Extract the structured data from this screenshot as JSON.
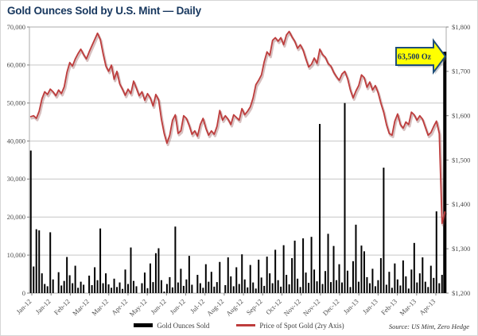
{
  "page": {
    "title": "Gold Ounces Sold by U.S. Mint — Daily",
    "source_note": "Source: US Mint, Zero Hedge"
  },
  "legend": {
    "bars_label": "Gold Ounces Sold",
    "line_label": "Price of Spot Gold (2ry Axis)"
  },
  "colors": {
    "title_text": "#17375E",
    "bars": "#000000",
    "line": "#BE3D3D",
    "line_shadow": "rgba(130,60,60,0.32)",
    "grid": "#C6C6C6",
    "plot_border": "#ABABAB",
    "axis_text": "#4d4d4d",
    "annotation_fill": "#FFFF00",
    "annotation_border": "#1F4E79",
    "annotation_text": "#17375E"
  },
  "chart_data": {
    "type": "combo: bar + line (secondary axis)",
    "title": "Gold Ounces Sold by U.S. Mint — Daily",
    "grid": true,
    "legend_position": "bottom",
    "annotation": {
      "text": "63,500 Oz",
      "points_to_value": 63500,
      "series": "Gold Ounces Sold"
    },
    "x_tick_labels": [
      "Jan-12",
      "Jan-12",
      "Feb-12",
      "Mar-12",
      "Mar-12",
      "Apr-12",
      "May-12",
      "Jun-12",
      "Jun-12",
      "Jul-12",
      "Aug-12",
      "Aug-12",
      "Sep-12",
      "Oct-12",
      "Nov-12",
      "Nov-12",
      "Dec-12",
      "Jan-13",
      "Jan-13",
      "Feb-13",
      "Mar-13",
      "Apr-13"
    ],
    "left_axis": {
      "label_for": "Gold Ounces Sold",
      "min": 0,
      "max": 70000,
      "step": 10000,
      "tick_labels": [
        "0",
        "10,000",
        "20,000",
        "30,000",
        "40,000",
        "50,000",
        "60,000",
        "70,000"
      ]
    },
    "right_axis": {
      "label_for": "Price of Spot Gold",
      "min": 1200,
      "max": 1800,
      "step": 100,
      "tick_labels": [
        "$1,200",
        "$1,300",
        "$1,400",
        "$1,500",
        "$1,600",
        "$1,700",
        "$1,800"
      ]
    },
    "series": [
      {
        "name": "Gold Ounces Sold",
        "type": "bar",
        "axis": "left",
        "values": [
          37500,
          7000,
          16800,
          16500,
          5200,
          2400,
          1800,
          16000,
          3600,
          0,
          5500,
          2000,
          3200,
          9500,
          4700,
          2600,
          7200,
          1400,
          3000,
          2200,
          0,
          4600,
          2100,
          6800,
          3400,
          17000,
          2600,
          5200,
          2300,
          1400,
          3800,
          1600,
          2800,
          1100,
          6200,
          2400,
          12000,
          3200,
          1800,
          0,
          2600,
          5400,
          1300,
          7800,
          2900,
          10500,
          11800,
          3400,
          400,
          2400,
          4200,
          1500,
          17500,
          2800,
          6400,
          1900,
          3600,
          9800,
          2200,
          0,
          4800,
          2600,
          1400,
          7600,
          3000,
          5600,
          1700,
          2900,
          8200,
          0,
          2100,
          9400,
          4400,
          1800,
          6800,
          2400,
          10200,
          3600,
          1500,
          7400,
          2800,
          1200,
          8800,
          4100,
          1900,
          9600,
          5200,
          2600,
          11400,
          3400,
          1700,
          12600,
          4800,
          2300,
          9200,
          13800,
          3800,
          1600,
          14400,
          5400,
          2700,
          14800,
          6200,
          3100,
          44500,
          2400,
          5800,
          15600,
          2900,
          12400,
          3400,
          7600,
          2800,
          50000,
          5900,
          1600,
          8400,
          18000,
          3000,
          12500,
          11000,
          4200,
          2600,
          6400,
          1800,
          3400,
          9200,
          33000,
          2200,
          5600,
          1400,
          7800,
          3600,
          2000,
          8600,
          4400,
          1200,
          6200,
          13200,
          2800,
          5200,
          9400,
          3000,
          1600,
          7200,
          4000,
          21500,
          2600,
          4800,
          63500
        ]
      },
      {
        "name": "Price of Spot Gold (2ry Axis)",
        "type": "line",
        "axis": "right",
        "values": [
          1598,
          1600,
          1594,
          1610,
          1638,
          1654,
          1648,
          1660,
          1654,
          1645,
          1658,
          1650,
          1665,
          1698,
          1720,
          1712,
          1728,
          1740,
          1750,
          1738,
          1728,
          1744,
          1758,
          1772,
          1786,
          1772,
          1740,
          1712,
          1700,
          1714,
          1682,
          1700,
          1672,
          1660,
          1646,
          1660,
          1650,
          1678,
          1662,
          1645,
          1654,
          1635,
          1650,
          1640,
          1622,
          1648,
          1636,
          1592,
          1560,
          1538,
          1556,
          1590,
          1602,
          1560,
          1566,
          1600,
          1594,
          1578,
          1558,
          1566,
          1554,
          1580,
          1594,
          1572,
          1556,
          1566,
          1558,
          1576,
          1612,
          1590,
          1600,
          1592,
          1580,
          1602,
          1596,
          1590,
          1616,
          1602,
          1610,
          1620,
          1640,
          1670,
          1680,
          1692,
          1722,
          1744,
          1736,
          1770,
          1776,
          1768,
          1776,
          1760,
          1782,
          1790,
          1778,
          1768,
          1752,
          1760,
          1748,
          1728,
          1710,
          1716,
          1730,
          1718,
          1750,
          1738,
          1732,
          1718,
          1712,
          1698,
          1688,
          1680,
          1694,
          1700,
          1684,
          1658,
          1640,
          1656,
          1668,
          1692,
          1686,
          1664,
          1676,
          1658,
          1668,
          1652,
          1628,
          1608,
          1580,
          1560,
          1556,
          1588,
          1604,
          1580,
          1572,
          1586,
          1580,
          1608,
          1602,
          1590,
          1600,
          1592,
          1574,
          1556,
          1562,
          1576,
          1588,
          1560,
          1357,
          1383
        ]
      }
    ]
  }
}
